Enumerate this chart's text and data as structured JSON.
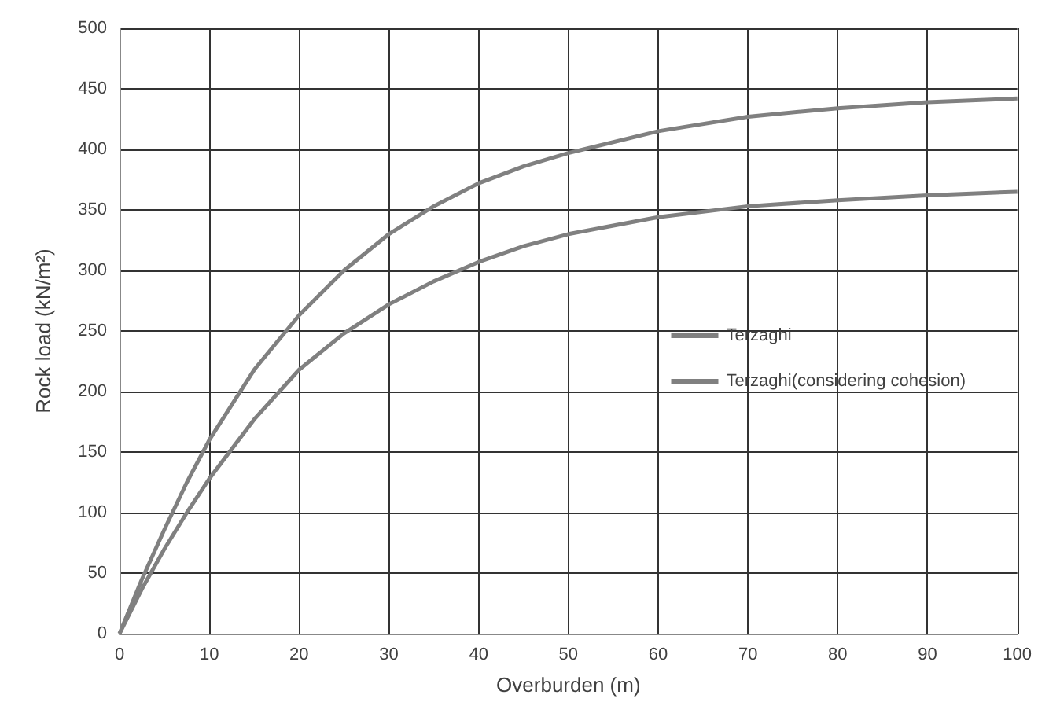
{
  "chart_data": {
    "type": "line",
    "xlabel": "Overburden (m)",
    "ylabel": "Rock load (kN/m²)",
    "x": [
      0,
      2.5,
      5,
      7.5,
      10,
      15,
      20,
      25,
      30,
      35,
      40,
      45,
      50,
      60,
      70,
      80,
      90,
      100
    ],
    "series": [
      {
        "name": "Terzaghi",
        "color": "#808080",
        "values": [
          0,
          45,
          86,
          125,
          160,
          218,
          263,
          300,
          330,
          353,
          372,
          386,
          397,
          415,
          427,
          434,
          439,
          442
        ]
      },
      {
        "name": "Terzaghi(considering cohesion)",
        "color": "#808080",
        "values": [
          0,
          37,
          70,
          100,
          128,
          177,
          218,
          248,
          272,
          291,
          307,
          320,
          330,
          344,
          353,
          358,
          362,
          365
        ]
      }
    ],
    "xlim": [
      0,
      100
    ],
    "xticks": [
      0,
      10,
      20,
      30,
      40,
      50,
      60,
      70,
      80,
      90,
      100
    ],
    "ylim": [
      0,
      500
    ],
    "yticks": [
      0,
      50,
      100,
      150,
      200,
      250,
      300,
      350,
      400,
      450,
      500
    ],
    "grid": true,
    "legend": "right",
    "marker": "none",
    "line_style": "solid"
  }
}
